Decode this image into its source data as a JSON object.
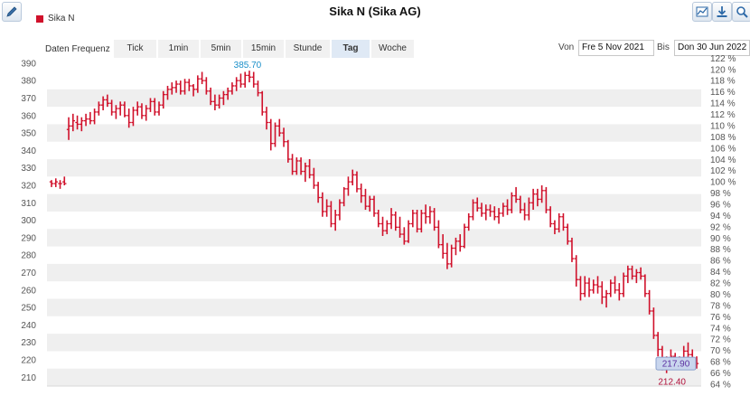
{
  "toolbar": {
    "edit_icon": "pencil-icon",
    "right_icons": [
      "chart-image-icon",
      "download-icon",
      "zoom-icon"
    ]
  },
  "title": "Sika N (Sika AG)",
  "legend": {
    "label": "Sika N",
    "color": "#d0112b"
  },
  "frequency": {
    "label": "Daten Frequenz",
    "options": [
      "Tick",
      "1min",
      "5min",
      "15min",
      "Stunde",
      "Tag",
      "Woche"
    ],
    "active": "Tag"
  },
  "range": {
    "from_label": "Von",
    "from_value": "Fre 5 Nov 2021",
    "to_label": "Bis",
    "to_value": "Don 30 Jun 2022"
  },
  "chart_data": {
    "type": "ohlc",
    "series_name": "Sika N",
    "color": "#d0112b",
    "y_axis": {
      "min": 205,
      "max": 392,
      "ticks": [
        210,
        220,
        230,
        240,
        250,
        260,
        270,
        280,
        290,
        300,
        310,
        320,
        330,
        340,
        350,
        360,
        370,
        380,
        390
      ]
    },
    "y2_axis": {
      "min_pct": 64,
      "max_pct": 122,
      "step": 2,
      "suffix": " %"
    },
    "max_marker": {
      "value": 385.7,
      "label": "385.70",
      "color": "#1a8fc9"
    },
    "min_marker": {
      "value": 212.4,
      "label": "212.40",
      "color": "#b0103a"
    },
    "last_marker": {
      "value": 217.9,
      "label": "217.90",
      "color": "#5b2fa0"
    },
    "ohlc": [
      [
        322,
        323,
        319,
        321
      ],
      [
        321,
        324,
        319,
        322
      ],
      [
        321,
        323,
        318,
        321
      ],
      [
        322,
        325,
        320,
        321
      ],
      [
        352,
        359,
        346,
        354
      ],
      [
        354,
        361,
        351,
        357
      ],
      [
        356,
        360,
        352,
        355
      ],
      [
        355,
        359,
        351,
        357
      ],
      [
        357,
        361,
        354,
        358
      ],
      [
        358,
        362,
        355,
        357
      ],
      [
        357,
        364,
        355,
        362
      ],
      [
        362,
        368,
        360,
        366
      ],
      [
        366,
        371,
        363,
        369
      ],
      [
        369,
        372,
        365,
        367
      ],
      [
        367,
        369,
        360,
        362
      ],
      [
        362,
        366,
        358,
        364
      ],
      [
        364,
        368,
        360,
        366
      ],
      [
        366,
        368,
        359,
        360
      ],
      [
        360,
        364,
        353,
        356
      ],
      [
        356,
        365,
        354,
        363
      ],
      [
        363,
        368,
        360,
        365
      ],
      [
        365,
        367,
        358,
        360
      ],
      [
        360,
        366,
        357,
        364
      ],
      [
        364,
        370,
        362,
        368
      ],
      [
        368,
        370,
        360,
        362
      ],
      [
        362,
        368,
        360,
        366
      ],
      [
        366,
        374,
        364,
        372
      ],
      [
        372,
        377,
        369,
        375
      ],
      [
        375,
        379,
        372,
        376
      ],
      [
        376,
        380,
        373,
        378
      ],
      [
        378,
        380,
        372,
        374
      ],
      [
        374,
        381,
        372,
        379
      ],
      [
        379,
        381,
        374,
        377
      ],
      [
        377,
        378,
        371,
        375
      ],
      [
        375,
        383,
        373,
        381
      ],
      [
        381,
        385,
        378,
        380
      ],
      [
        380,
        382,
        372,
        374
      ],
      [
        374,
        376,
        366,
        368
      ],
      [
        368,
        372,
        363,
        366
      ],
      [
        366,
        372,
        364,
        370
      ],
      [
        370,
        374,
        366,
        372
      ],
      [
        372,
        376,
        369,
        374
      ],
      [
        374,
        379,
        372,
        377
      ],
      [
        377,
        382,
        374,
        380
      ],
      [
        380,
        384,
        376,
        378
      ],
      [
        378,
        385,
        376,
        383
      ],
      [
        383,
        385.7,
        379,
        382
      ],
      [
        382,
        385,
        376,
        378
      ],
      [
        378,
        380,
        371,
        373
      ],
      [
        373,
        374,
        360,
        362
      ],
      [
        362,
        365,
        352,
        356
      ],
      [
        356,
        358,
        340,
        344
      ],
      [
        344,
        356,
        342,
        354
      ],
      [
        354,
        358,
        348,
        350
      ],
      [
        350,
        353,
        342,
        345
      ],
      [
        345,
        346,
        333,
        335
      ],
      [
        335,
        338,
        326,
        328
      ],
      [
        328,
        336,
        326,
        334
      ],
      [
        334,
        336,
        326,
        328
      ],
      [
        328,
        333,
        322,
        331
      ],
      [
        331,
        335,
        324,
        326
      ],
      [
        326,
        330,
        318,
        320
      ],
      [
        320,
        322,
        310,
        313
      ],
      [
        313,
        316,
        302,
        305
      ],
      [
        305,
        312,
        302,
        308
      ],
      [
        308,
        311,
        296,
        298
      ],
      [
        298,
        306,
        294,
        303
      ],
      [
        303,
        312,
        300,
        310
      ],
      [
        310,
        319,
        308,
        318
      ],
      [
        318,
        325,
        314,
        322
      ],
      [
        322,
        329,
        320,
        326
      ],
      [
        326,
        328,
        316,
        318
      ],
      [
        318,
        321,
        310,
        314
      ],
      [
        314,
        318,
        306,
        308
      ],
      [
        308,
        314,
        305,
        312
      ],
      [
        312,
        314,
        302,
        304
      ],
      [
        304,
        306,
        296,
        298
      ],
      [
        298,
        302,
        291,
        294
      ],
      [
        294,
        300,
        292,
        298
      ],
      [
        298,
        307,
        295,
        303
      ],
      [
        303,
        305,
        294,
        296
      ],
      [
        296,
        302,
        290,
        292
      ],
      [
        292,
        296,
        286,
        288
      ],
      [
        288,
        300,
        287,
        298
      ],
      [
        298,
        306,
        296,
        304
      ],
      [
        304,
        306,
        293,
        295
      ],
      [
        295,
        306,
        293,
        304
      ],
      [
        304,
        309,
        298,
        302
      ],
      [
        302,
        308,
        298,
        305
      ],
      [
        305,
        307,
        294,
        296
      ],
      [
        296,
        300,
        284,
        286
      ],
      [
        286,
        292,
        278,
        281
      ],
      [
        281,
        287,
        272,
        275
      ],
      [
        275,
        286,
        273,
        284
      ],
      [
        284,
        290,
        280,
        288
      ],
      [
        288,
        292,
        282,
        285
      ],
      [
        285,
        298,
        284,
        296
      ],
      [
        296,
        304,
        294,
        302
      ],
      [
        302,
        312,
        300,
        310
      ],
      [
        310,
        313,
        305,
        307
      ],
      [
        307,
        310,
        302,
        304
      ],
      [
        304,
        309,
        300,
        306
      ],
      [
        306,
        309,
        302,
        305
      ],
      [
        305,
        308,
        300,
        302
      ],
      [
        302,
        307,
        298,
        304
      ],
      [
        304,
        310,
        302,
        308
      ],
      [
        308,
        312,
        303,
        306
      ],
      [
        306,
        316,
        304,
        314
      ],
      [
        314,
        319,
        310,
        312
      ],
      [
        312,
        314,
        304,
        306
      ],
      [
        306,
        310,
        300,
        303
      ],
      [
        303,
        313,
        300,
        310
      ],
      [
        310,
        318,
        306,
        315
      ],
      [
        315,
        318,
        308,
        312
      ],
      [
        312,
        320,
        310,
        317
      ],
      [
        317,
        319,
        304,
        306
      ],
      [
        306,
        308,
        296,
        298
      ],
      [
        298,
        300,
        292,
        295
      ],
      [
        295,
        304,
        293,
        302
      ],
      [
        302,
        304,
        294,
        296
      ],
      [
        296,
        298,
        286,
        288
      ],
      [
        288,
        290,
        276,
        278
      ],
      [
        278,
        280,
        262,
        266
      ],
      [
        266,
        268,
        254,
        258
      ],
      [
        258,
        268,
        256,
        264
      ],
      [
        264,
        267,
        256,
        260
      ],
      [
        260,
        266,
        258,
        263
      ],
      [
        263,
        268,
        258,
        262
      ],
      [
        262,
        265,
        252,
        256
      ],
      [
        256,
        260,
        250,
        258
      ],
      [
        258,
        266,
        256,
        264
      ],
      [
        264,
        268,
        258,
        260
      ],
      [
        260,
        264,
        254,
        258
      ],
      [
        258,
        270,
        256,
        268
      ],
      [
        268,
        274,
        264,
        272
      ],
      [
        272,
        274,
        266,
        268
      ],
      [
        268,
        272,
        264,
        270
      ],
      [
        270,
        273,
        266,
        268
      ],
      [
        268,
        269,
        256,
        258
      ],
      [
        258,
        260,
        246,
        248
      ],
      [
        248,
        250,
        232,
        234
      ],
      [
        234,
        236,
        222,
        226
      ],
      [
        226,
        228,
        214,
        218
      ],
      [
        218,
        222,
        212.4,
        220
      ],
      [
        220,
        226,
        216,
        222
      ],
      [
        222,
        224,
        216,
        219
      ],
      [
        219,
        222,
        215,
        221
      ],
      [
        221,
        228,
        218,
        225
      ],
      [
        225,
        230,
        221,
        223
      ],
      [
        223,
        226,
        216,
        219
      ],
      [
        219,
        222,
        215,
        217.9
      ]
    ]
  }
}
